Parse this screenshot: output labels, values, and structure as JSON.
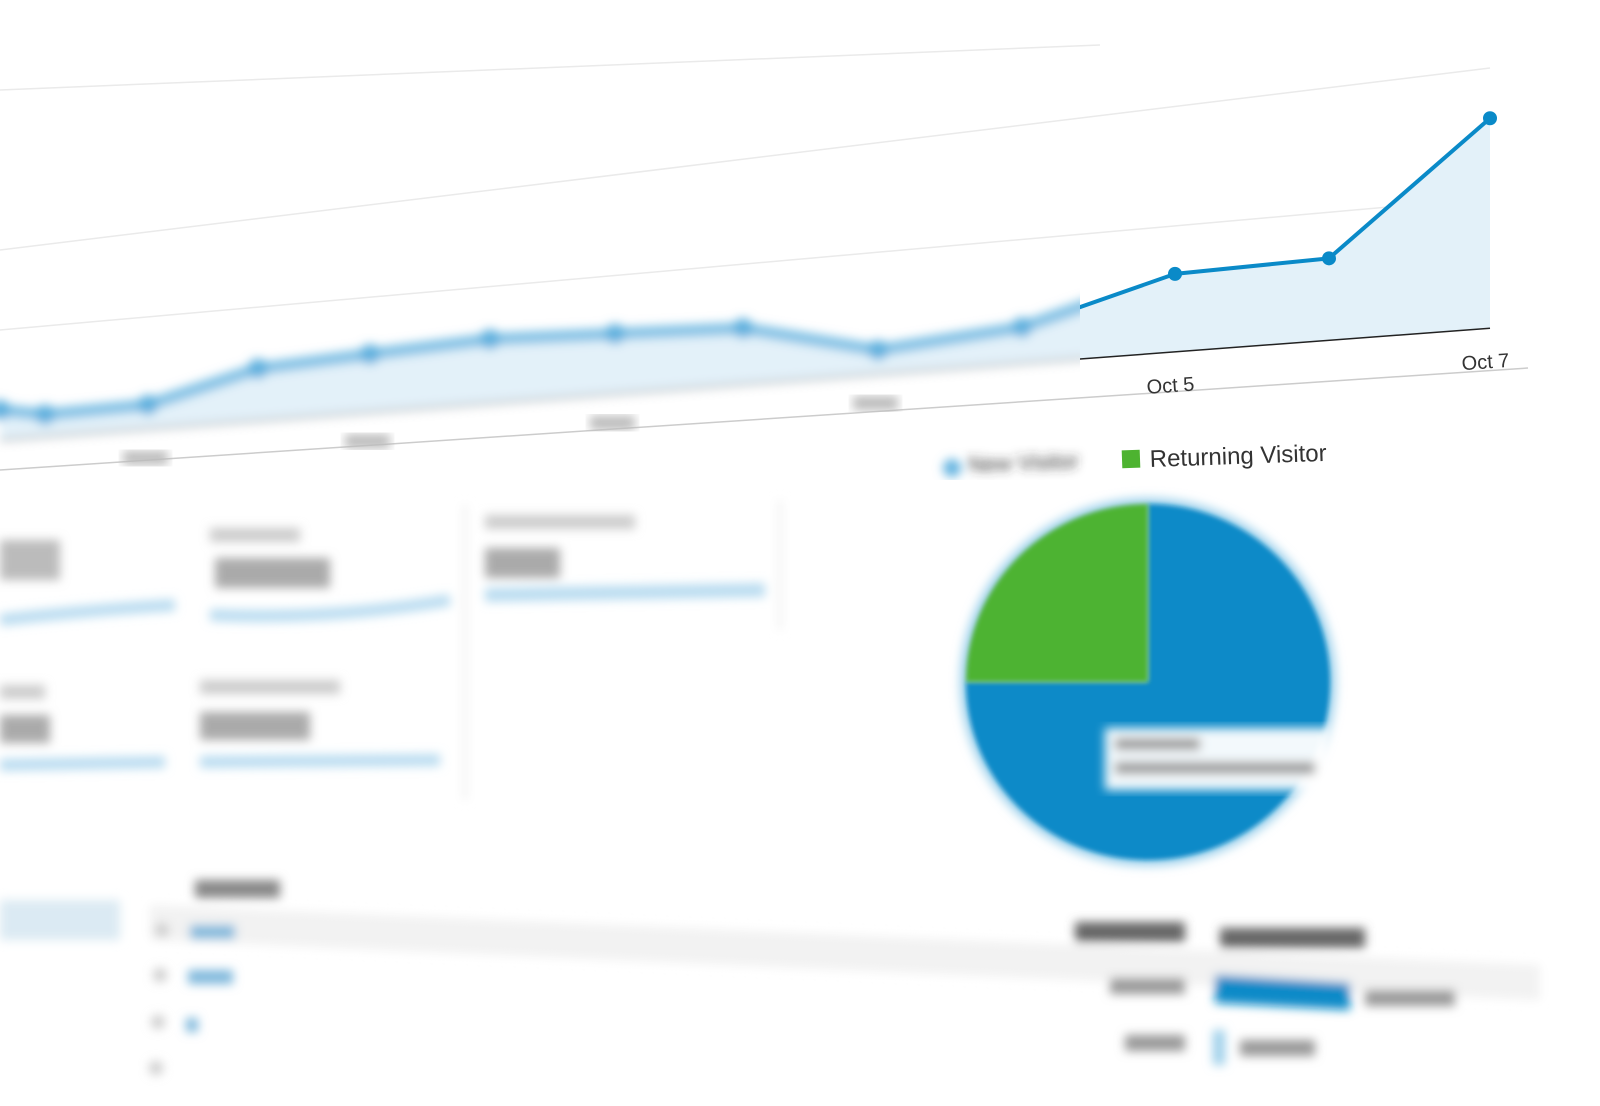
{
  "chart_data": [
    {
      "type": "area",
      "x": [
        "Sep 25",
        "Sep 26",
        "Sep 27",
        "Sep 28",
        "Sep 29",
        "Sep 30",
        "Oct 1",
        "Oct 2",
        "Oct 3",
        "Oct 4",
        "Oct 5",
        "Oct 6",
        "Oct 7"
      ],
      "values": [
        15,
        11,
        12,
        26,
        29,
        32,
        30,
        28,
        12,
        18,
        39,
        41,
        105
      ],
      "tick_labels": {
        "Oct 5": "Oct 5",
        "Oct 7": "Oct 7"
      },
      "grid": true,
      "colors": {
        "line": "#0a8ac8",
        "fill": "#e3f1f9"
      }
    },
    {
      "type": "pie",
      "legend_position": "top",
      "slices": [
        {
          "name": "New Visitor",
          "value": 75,
          "color": "#0a8ac8"
        },
        {
          "name": "Returning Visitor",
          "value": 25,
          "color": "#4db330"
        }
      ]
    }
  ]
}
